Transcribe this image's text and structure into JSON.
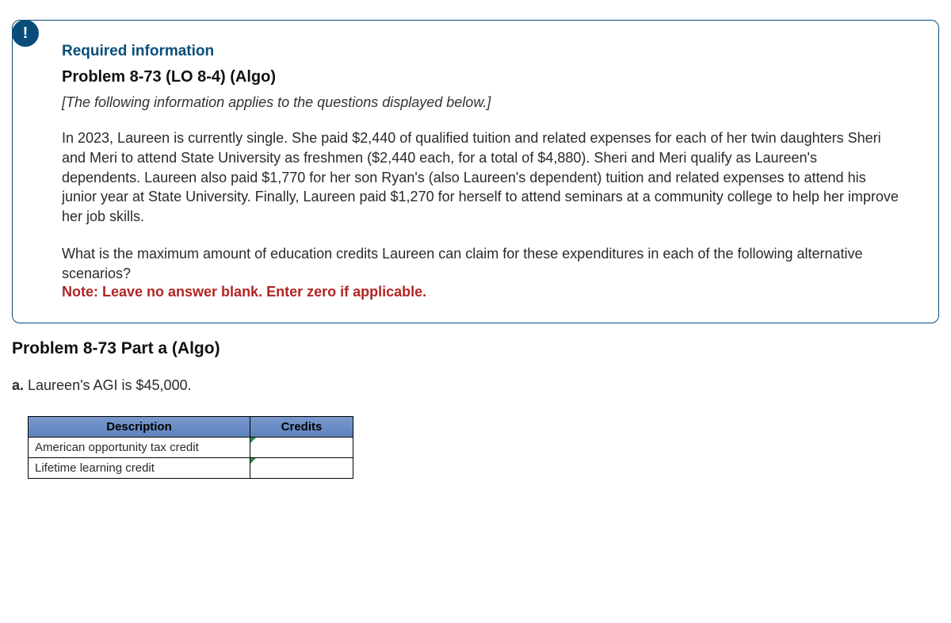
{
  "badge_char": "!",
  "card": {
    "required_label": "Required information",
    "problem_title": "Problem 8-73 (LO 8-4) (Algo)",
    "subtitle": "[The following information applies to the questions displayed below.]",
    "body": "In 2023, Laureen is currently single. She paid $2,440 of qualified tuition and related expenses for each of her twin daughters Sheri and Meri to attend State University as freshmen ($2,440 each, for a total of $4,880). Sheri and Meri qualify as Laureen's dependents. Laureen also paid $1,770 for her son Ryan's (also Laureen's dependent) tuition and related expenses to attend his junior year at State University. Finally, Laureen paid $1,270 for herself to attend seminars at a community college to help her improve her job skills.",
    "question": "What is the maximum amount of education credits Laureen can claim for these expenditures in each of the following alternative scenarios?",
    "note": "Note: Leave no answer blank. Enter zero if applicable."
  },
  "part_title": "Problem 8-73 Part a (Algo)",
  "scenario_prefix": "a.",
  "scenario_text": " Laureen's AGI is $45,000.",
  "table": {
    "columns": [
      "Description",
      "Credits"
    ],
    "rows": [
      {
        "desc": "American opportunity tax credit",
        "value": ""
      },
      {
        "desc": "Lifetime learning credit",
        "value": ""
      }
    ],
    "header_bg": "#6b8ec5",
    "border_color": "#000000",
    "marker_color": "#2e8b57"
  }
}
